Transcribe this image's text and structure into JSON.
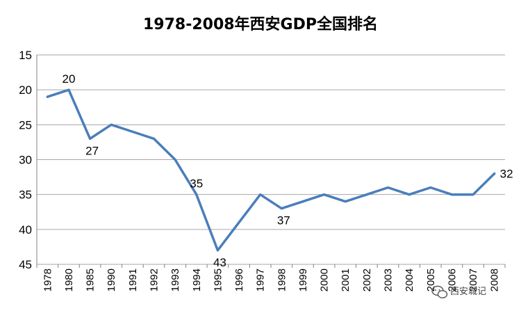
{
  "chart_data": {
    "type": "line",
    "title": "1978-2008年西安GDP全国排名",
    "xlabel": "",
    "ylabel": "",
    "categories": [
      "1978",
      "1980",
      "1985",
      "1990",
      "1991",
      "1992",
      "1993",
      "1994",
      "1995",
      "1996",
      "1997",
      "1998",
      "1999",
      "2000",
      "2001",
      "2002",
      "2003",
      "2004",
      "2005",
      "2006",
      "2007",
      "2008"
    ],
    "series": [
      {
        "values": [
          21,
          20,
          27,
          25,
          26,
          27,
          30,
          35,
          43,
          39,
          35,
          37,
          36,
          35,
          36,
          35,
          34,
          35,
          34,
          35,
          35,
          32
        ],
        "color": "#4a7ebb"
      }
    ],
    "data_labels": [
      {
        "index": 1,
        "text": "20",
        "position": "above"
      },
      {
        "index": 2,
        "text": "27",
        "position": "below"
      },
      {
        "index": 7,
        "text": "35",
        "position": "above"
      },
      {
        "index": 8,
        "text": "43",
        "position": "below"
      },
      {
        "index": 11,
        "text": "37",
        "position": "below"
      },
      {
        "index": 21,
        "text": "32",
        "position": "right"
      }
    ],
    "yticks": [
      15,
      20,
      25,
      30,
      35,
      40,
      45
    ],
    "ylim": [
      15,
      45
    ],
    "y_inverted": true,
    "grid": true,
    "legend": "none"
  },
  "watermark": {
    "icon": "wechat-icon",
    "text": "西安城记"
  }
}
